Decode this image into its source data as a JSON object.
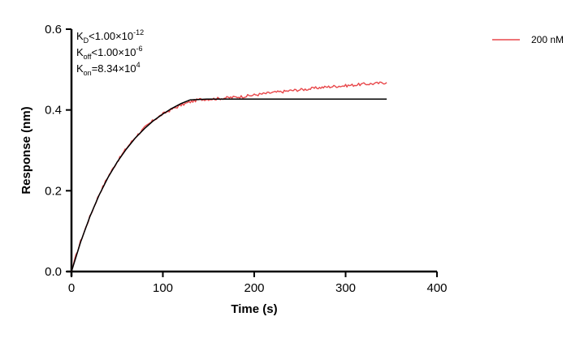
{
  "chart_data": {
    "type": "line",
    "xlabel": "Time (s)",
    "ylabel": "Response (nm)",
    "xlim": [
      0,
      400
    ],
    "ylim": [
      0,
      0.6
    ],
    "xticks": [
      0,
      100,
      200,
      300,
      400
    ],
    "yticks": [
      0,
      0.2,
      0.4,
      0.6
    ],
    "xtick_labels": [
      "0",
      "100",
      "200",
      "300",
      "400"
    ],
    "ytick_labels": [
      "0.0",
      "0.2",
      "0.4",
      "0.6"
    ],
    "grid": false,
    "legend_position": "top-right",
    "annotations": {
      "kd": {
        "symbol": "K",
        "sub": "D",
        "relation": "<",
        "mantissa": "1.00×10",
        "exponent": "-12"
      },
      "koff": {
        "symbol": "K",
        "sub": "off",
        "relation": "<",
        "mantissa": "1.00×10",
        "exponent": "-6"
      },
      "kon": {
        "symbol": "K",
        "sub": "on",
        "relation": "=",
        "mantissa": "8.34×10",
        "exponent": "4"
      }
    },
    "series": [
      {
        "name": "200 nM",
        "color": "#e8474a",
        "points": [
          [
            0,
            0.0
          ],
          [
            5,
            0.04
          ],
          [
            10,
            0.075
          ],
          [
            20,
            0.135
          ],
          [
            30,
            0.19
          ],
          [
            40,
            0.235
          ],
          [
            50,
            0.272
          ],
          [
            60,
            0.305
          ],
          [
            70,
            0.333
          ],
          [
            80,
            0.356
          ],
          [
            90,
            0.375
          ],
          [
            100,
            0.39
          ],
          [
            110,
            0.402
          ],
          [
            120,
            0.412
          ],
          [
            130,
            0.42
          ],
          [
            140,
            0.426
          ],
          [
            150,
            0.427
          ],
          [
            160,
            0.428
          ],
          [
            170,
            0.43
          ],
          [
            180,
            0.432
          ],
          [
            190,
            0.434
          ],
          [
            200,
            0.437
          ],
          [
            210,
            0.44
          ],
          [
            220,
            0.443
          ],
          [
            230,
            0.445
          ],
          [
            240,
            0.448
          ],
          [
            250,
            0.45
          ],
          [
            260,
            0.452
          ],
          [
            270,
            0.455
          ],
          [
            280,
            0.457
          ],
          [
            290,
            0.459
          ],
          [
            300,
            0.46
          ],
          [
            310,
            0.462
          ],
          [
            320,
            0.464
          ],
          [
            330,
            0.465
          ],
          [
            345,
            0.468
          ]
        ]
      },
      {
        "color": "#000000",
        "points": [
          [
            0,
            0.0
          ],
          [
            10,
            0.073
          ],
          [
            20,
            0.135
          ],
          [
            30,
            0.188
          ],
          [
            40,
            0.233
          ],
          [
            50,
            0.271
          ],
          [
            60,
            0.303
          ],
          [
            70,
            0.331
          ],
          [
            80,
            0.354
          ],
          [
            90,
            0.374
          ],
          [
            100,
            0.39
          ],
          [
            110,
            0.404
          ],
          [
            120,
            0.416
          ],
          [
            130,
            0.425
          ],
          [
            148,
            0.427
          ],
          [
            200,
            0.427
          ],
          [
            250,
            0.427
          ],
          [
            300,
            0.427
          ],
          [
            345,
            0.427
          ]
        ]
      }
    ]
  }
}
